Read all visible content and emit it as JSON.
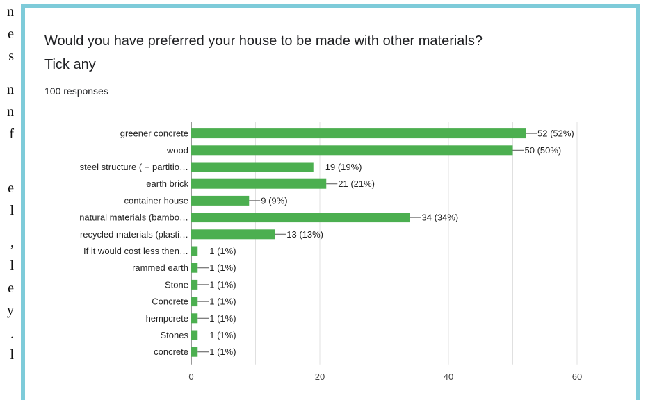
{
  "question": {
    "title_line1": "Would you have preferred your house to be made with other materials?",
    "title_line2": "Tick any",
    "responses": "100 responses"
  },
  "colors": {
    "bar": "#4caf50",
    "frame": "#7ecbd9",
    "grid": "#e0e0e0"
  },
  "chart_data": {
    "type": "bar",
    "orientation": "horizontal",
    "title": "",
    "xlabel": "",
    "ylabel": "",
    "xlim": [
      0,
      60
    ],
    "xticks": [
      0,
      20,
      40,
      60
    ],
    "grid": true,
    "categories": [
      "greener concrete",
      "wood",
      "steel structure ( + partitio…",
      "earth brick",
      "container house",
      "natural materials (bambo…",
      "recycled materials (plasti…",
      "If it would cost less then…",
      "rammed earth",
      "Stone",
      "Concrete",
      "hempcrete",
      "Stones",
      "concrete"
    ],
    "values": [
      52,
      50,
      19,
      21,
      9,
      34,
      13,
      1,
      1,
      1,
      1,
      1,
      1,
      1
    ],
    "labels": [
      "52 (52%)",
      "50 (50%)",
      "19 (19%)",
      "21 (21%)",
      "9 (9%)",
      "34 (34%)",
      "13 (13%)",
      "1 (1%)",
      "1 (1%)",
      "1 (1%)",
      "1 (1%)",
      "1 (1%)",
      "1 (1%)",
      "1 (1%)"
    ]
  }
}
